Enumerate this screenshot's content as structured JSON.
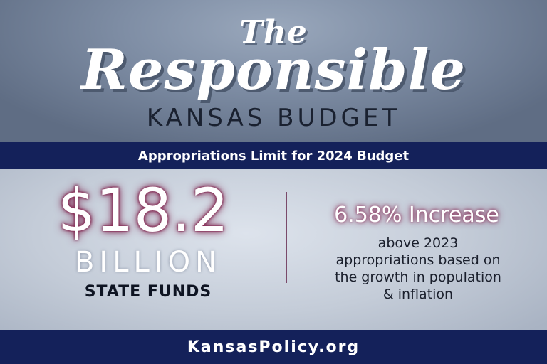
{
  "header": {
    "title_line1": "The",
    "title_line2": "Responsible",
    "subtitle": "KANSAS BUDGET"
  },
  "banner": {
    "text": "Appropriations Limit for 2024 Budget"
  },
  "highlight": {
    "amount": "$18.2",
    "unit": "BILLION",
    "fund_type": "STATE FUNDS"
  },
  "detail": {
    "increase": "6.58% Increase",
    "lines": [
      "above 2023",
      "appropriations based on",
      "the growth in population",
      "& inflation"
    ]
  },
  "footer": {
    "website": "KansasPolicy.org"
  }
}
